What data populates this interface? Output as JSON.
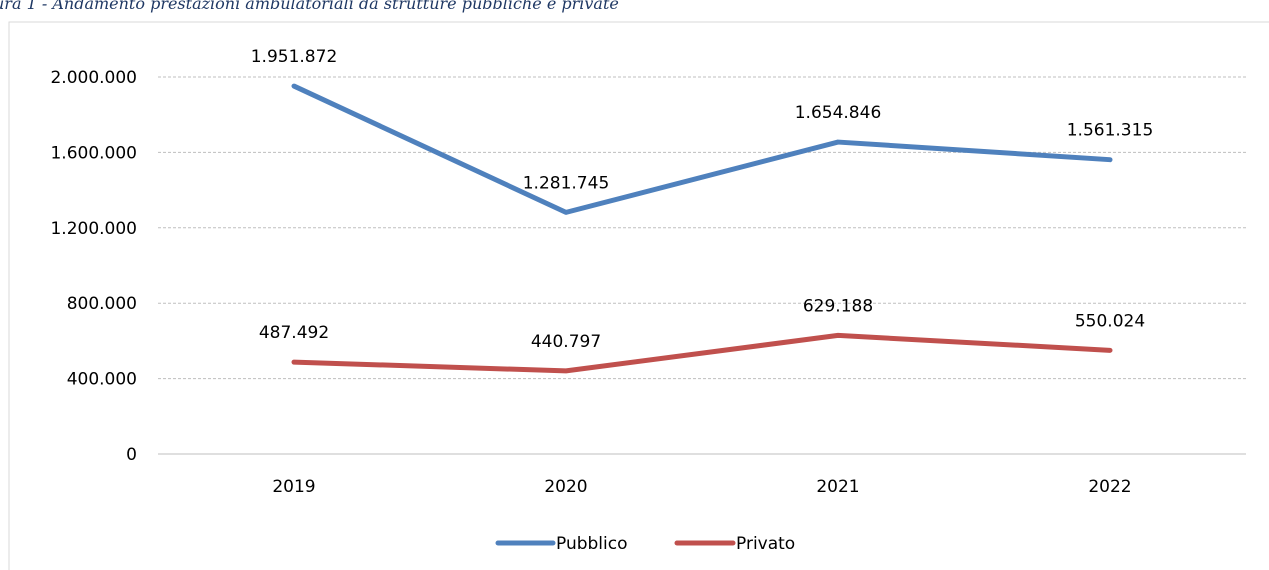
{
  "caption": "ura 1 - Andamento prestazioni ambulatoriali da strutture pubbliche e private",
  "colors": {
    "pubblico": "#4f81bd",
    "privato": "#c0504d",
    "grid": "#bfbfbf",
    "frame": "#d9d9d9"
  },
  "chart_data": {
    "type": "line",
    "categories": [
      "2019",
      "2020",
      "2021",
      "2022"
    ],
    "series": [
      {
        "name": "Pubblico",
        "values": [
          1951872,
          1281745,
          1654846,
          1561315
        ],
        "labels": [
          "1.951.872",
          "1.281.745",
          "1.654.846",
          "1.561.315"
        ]
      },
      {
        "name": "Privato",
        "values": [
          487492,
          440797,
          629188,
          550024
        ],
        "labels": [
          "487.492",
          "440.797",
          "629.188",
          "550.024"
        ]
      }
    ],
    "y_ticks": [
      "0",
      "400.000",
      "800.000",
      "1.200.000",
      "1.600.000",
      "2.000.000"
    ],
    "ylim": [
      0,
      2000000
    ],
    "grid": true,
    "legend_position": "bottom"
  }
}
